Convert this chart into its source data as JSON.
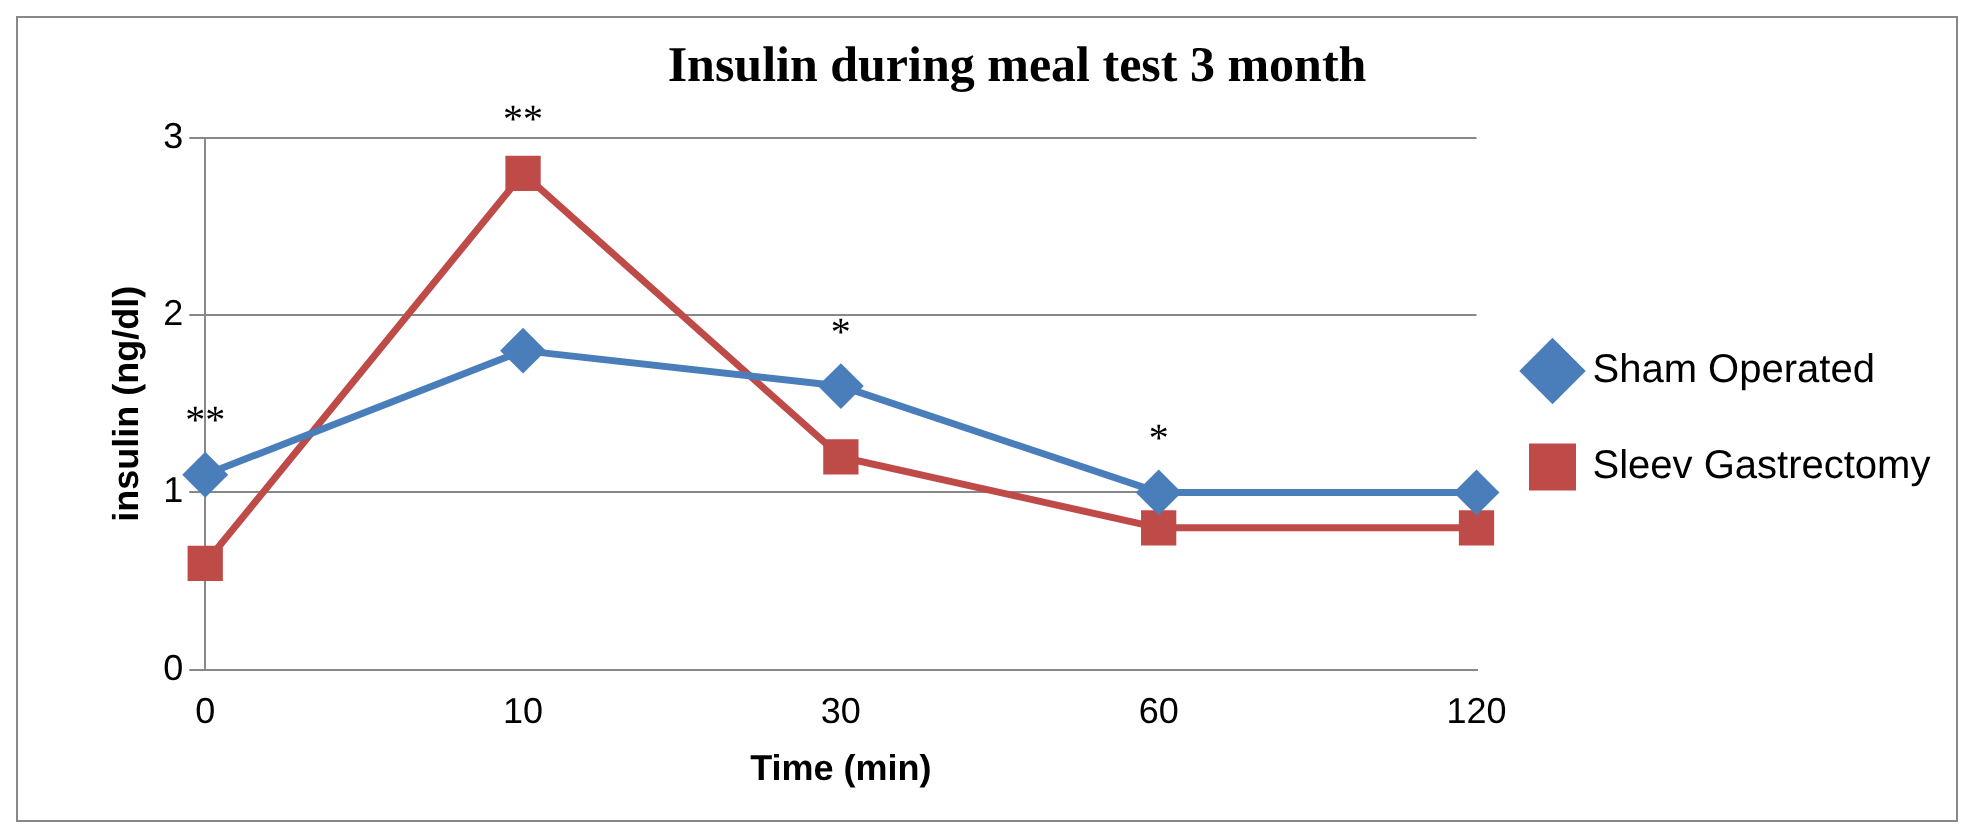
{
  "chart_data": {
    "type": "line",
    "title": "Insulin during meal test 3 month",
    "xlabel": "Time (min)",
    "ylabel": "insulin (ng/dl)",
    "categories": [
      "0",
      "10",
      "30",
      "60",
      "120"
    ],
    "series": [
      {
        "name": "Sham Operated",
        "color": "#4a7ebb",
        "marker": "diamond",
        "values": [
          1.1,
          1.8,
          1.6,
          1.0,
          1.0
        ]
      },
      {
        "name": "Sleev Gastrectomy",
        "color": "#be4b48",
        "marker": "square",
        "values": [
          0.6,
          2.8,
          1.2,
          0.8,
          0.8
        ]
      }
    ],
    "ylim": [
      0,
      3
    ],
    "yticks": [
      0,
      1,
      2,
      3
    ],
    "grid": "y",
    "legend": "right",
    "line_style": "solid",
    "annotations": [
      "**",
      "**",
      "*",
      "*"
    ]
  }
}
